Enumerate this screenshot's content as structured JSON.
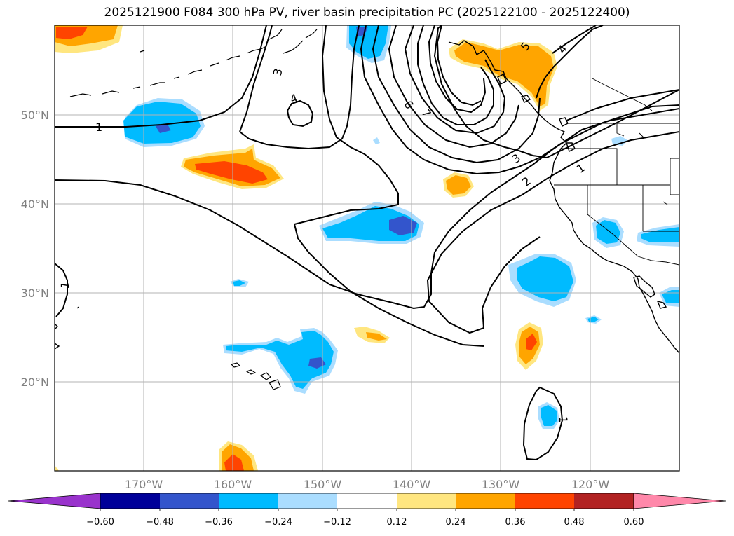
{
  "title": "2025121900 F084 300 hPa PV, river basin precipitation PC (2025122100 - 2025122400)",
  "latitude_labels": [
    "20°N",
    "30°N",
    "40°N",
    "50°N"
  ],
  "longitude_labels": [
    "170°W",
    "160°W",
    "150°W",
    "140°W",
    "130°W",
    "120°W"
  ],
  "colorbar": {
    "tick_labels": [
      "−0.60",
      "−0.48",
      "−0.36",
      "−0.24",
      "−0.12",
      "0.12",
      "0.24",
      "0.36",
      "0.48",
      "0.60"
    ],
    "colors": [
      "#9933cc",
      "#000099",
      "#3355cc",
      "#00bbff",
      "#aaddff",
      "#ffffff",
      "#ffe680",
      "#ffa500",
      "#ff4400",
      "#b22222",
      "#ff88aa"
    ]
  },
  "contour_labels": {
    "pv_1_west": "1",
    "pv_1_far_west": "1",
    "pv_2": "2",
    "pv_1_east": "1",
    "pv_3": "3",
    "pv_3_north": "3",
    "pv_4": "4",
    "pv_4_east": "4",
    "pv_5": "5",
    "pv_6": "6",
    "pv_7": "7",
    "pv_1_south": "1"
  },
  "colors": {
    "positive_light": "#ffe680",
    "positive_mid": "#ffa500",
    "positive_strong": "#ff4400",
    "negative_light": "#aaddff",
    "negative_mid": "#00bbff",
    "negative_strong": "#3355cc"
  }
}
